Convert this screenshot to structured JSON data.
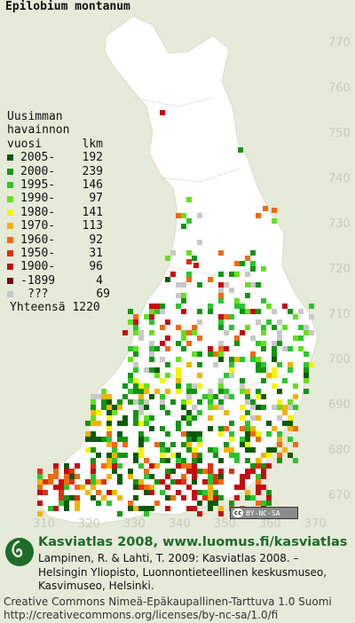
{
  "species": "Epilobium montanum",
  "map": {
    "y_ticks": [
      "770",
      "760",
      "750",
      "740",
      "730",
      "720",
      "710",
      "700",
      "690",
      "680",
      "670"
    ],
    "x_ticks": [
      "310",
      "320",
      "330",
      "340",
      "350",
      "360",
      "370"
    ]
  },
  "legend": {
    "header": [
      "Uusimman",
      "havainnon",
      "vuosi"
    ],
    "count_header": "lkm",
    "items": [
      {
        "label": "2005-",
        "count": "192",
        "color": "#0a5a0a"
      },
      {
        "label": "2000-",
        "count": "239",
        "color": "#149414"
      },
      {
        "label": "1995-",
        "count": "146",
        "color": "#2ec42e"
      },
      {
        "label": "1990-",
        "count": "97",
        "color": "#66e01a"
      },
      {
        "label": "1980-",
        "count": "141",
        "color": "#f4f400"
      },
      {
        "label": "1970-",
        "count": "113",
        "color": "#f2b400"
      },
      {
        "label": "1960-",
        "count": "92",
        "color": "#f06a10"
      },
      {
        "label": "1950-",
        "count": "31",
        "color": "#e03010"
      },
      {
        "label": "1900-",
        "count": "96",
        "color": "#c40c10"
      },
      {
        "label": "-1899",
        "count": "4",
        "color": "#7a0808"
      },
      {
        "label": "???",
        "count": "69",
        "color": "#c8c8c8"
      }
    ],
    "total_label": "Yhteensä",
    "total": "1220"
  },
  "license_badge": "BY-NC-SA",
  "footer": {
    "title": "Kasviatlas 2008, www.luomus.fi/kasviatlas",
    "citation": [
      "Lampinen, R. & Lahti, T. 2009: Kasviatlas 2008. –",
      "Helsingin Yliopisto, Luonnontieteellinen keskusmuseo,",
      "Kasvimuseo, Helsinki."
    ],
    "license": [
      "Creative Commons Nimeä-Epäkaupallinen-Tarttuva 1.0 Suomi",
      "http://creativecommons.org/licenses/by-nc-sa/1.0/fi"
    ]
  }
}
